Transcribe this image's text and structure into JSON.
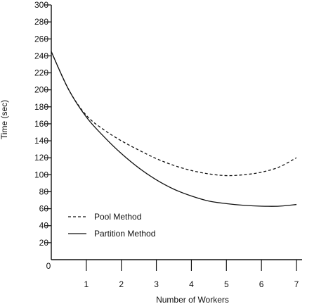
{
  "chart_data": {
    "type": "line",
    "title": "",
    "xlabel": "Number of Workers",
    "ylabel": "Time (sec)",
    "xlim": [
      0,
      7
    ],
    "ylim": [
      0,
      300
    ],
    "x_ticks": [
      1,
      2,
      3,
      4,
      5,
      6,
      7
    ],
    "x_origin_label": "0",
    "y_ticks": [
      20,
      40,
      60,
      80,
      100,
      120,
      140,
      160,
      180,
      200,
      220,
      240,
      260,
      280,
      300
    ],
    "grid": false,
    "legend_position": "lower-left",
    "series": [
      {
        "name": "Pool Method",
        "style": "dashed",
        "x": [
          0,
          0.5,
          1,
          1.5,
          2,
          2.5,
          3,
          3.5,
          4,
          4.5,
          5,
          5.5,
          6,
          6.5,
          7
        ],
        "y": [
          245,
          200,
          170,
          153,
          140,
          129,
          119,
          111,
          105,
          101,
          99,
          100,
          103,
          109,
          120
        ]
      },
      {
        "name": "Partition Method",
        "style": "solid",
        "x": [
          0,
          0.5,
          1,
          1.5,
          2,
          2.5,
          3,
          3.5,
          4,
          4.5,
          5,
          5.5,
          6,
          6.5,
          7
        ],
        "y": [
          245,
          200,
          168,
          145,
          125,
          108,
          94,
          83,
          75,
          69,
          66,
          64,
          63,
          63,
          65
        ]
      }
    ]
  }
}
